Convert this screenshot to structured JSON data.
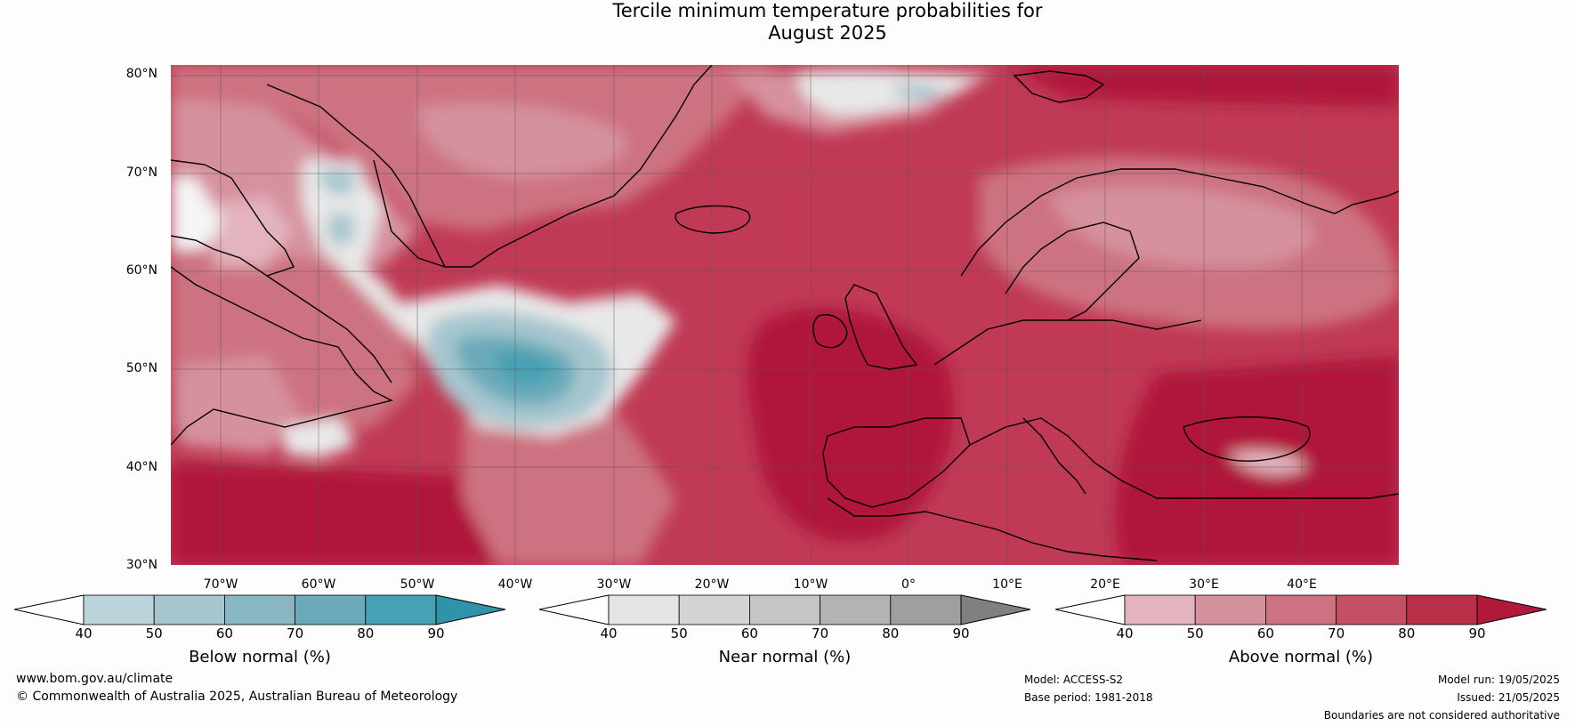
{
  "title_line1": "Tercile minimum temperature probabilities for",
  "title_line2": "August 2025",
  "lat_labels": [
    "80°N",
    "70°N",
    "60°N",
    "50°N",
    "40°N",
    "30°N"
  ],
  "lon_labels": [
    "70°W",
    "60°W",
    "50°W",
    "40°W",
    "30°W",
    "20°W",
    "10°W",
    "0°",
    "10°E",
    "20°E",
    "30°E",
    "40°E"
  ],
  "colorbars": {
    "below": {
      "title": "Below normal (%)",
      "ticks": [
        "40",
        "50",
        "60",
        "70",
        "80",
        "90"
      ],
      "colors": [
        "#ffffff",
        "#bcd3db",
        "#a6c6ce",
        "#89b6c3",
        "#6aaab9",
        "#47a0b3",
        "#2f94a9"
      ]
    },
    "near": {
      "title": "Near normal (%)",
      "ticks": [
        "40",
        "50",
        "60",
        "70",
        "80",
        "90"
      ],
      "colors": [
        "#ffffff",
        "#e5e5e5",
        "#d4d4d4",
        "#c5c5c5",
        "#b3b3b3",
        "#9f9f9f",
        "#808080"
      ]
    },
    "above": {
      "title": "Above normal (%)",
      "ticks": [
        "40",
        "50",
        "60",
        "70",
        "80",
        "90"
      ],
      "colors": [
        "#ffffff",
        "#e3b4bd",
        "#d6919e",
        "#cd7280",
        "#c35163",
        "#b82f48",
        "#b0193a"
      ]
    }
  },
  "footer": {
    "website": "www.bom.gov.au/climate",
    "copyright": "© Commonwealth of Australia 2025, Australian Bureau of Meteorology",
    "model": "Model: ACCESS-S2",
    "base_period": "Base period: 1981-2018",
    "model_run": "Model run: 19/05/2025",
    "issued": "Issued: 21/05/2025",
    "disclaimer": "Boundaries are not considered authoritative"
  }
}
